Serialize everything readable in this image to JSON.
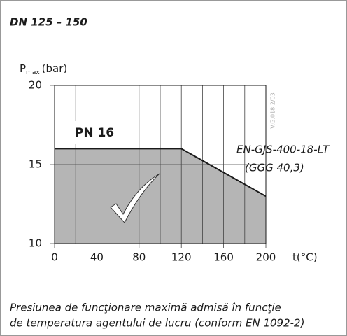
{
  "chart_data": {
    "type": "area",
    "title": "DN 125 – 150",
    "ylabel": {
      "symbol": "P",
      "subscript": "max",
      "unit": "(bar)"
    },
    "xlabel": "t(°C)",
    "x": [
      0,
      120,
      200
    ],
    "values": [
      16,
      16,
      13
    ],
    "color": "#b5b5b5",
    "line_color": "#1a1a1a",
    "xlim": [
      0,
      200
    ],
    "ylim": [
      10,
      20
    ],
    "xticks": [
      0,
      40,
      80,
      120,
      160,
      200
    ],
    "yticks": [
      10,
      15,
      20
    ],
    "x_minor_ticks": [
      20,
      60,
      100,
      140,
      180
    ],
    "y_minor_ticks": [
      12.5,
      17.5
    ],
    "grid": true,
    "annotations": {
      "pressure_class": "PN 16",
      "material": "EN-GJS-400-18-LT",
      "material_alt": "(GGG 40,3)",
      "code": "V.G.018.2/03"
    },
    "caption": [
      "Presiunea de funcţionare maximă admisă în funcţie",
      "de temperatura agentului de lucru (conform EN 1092-2)"
    ]
  }
}
